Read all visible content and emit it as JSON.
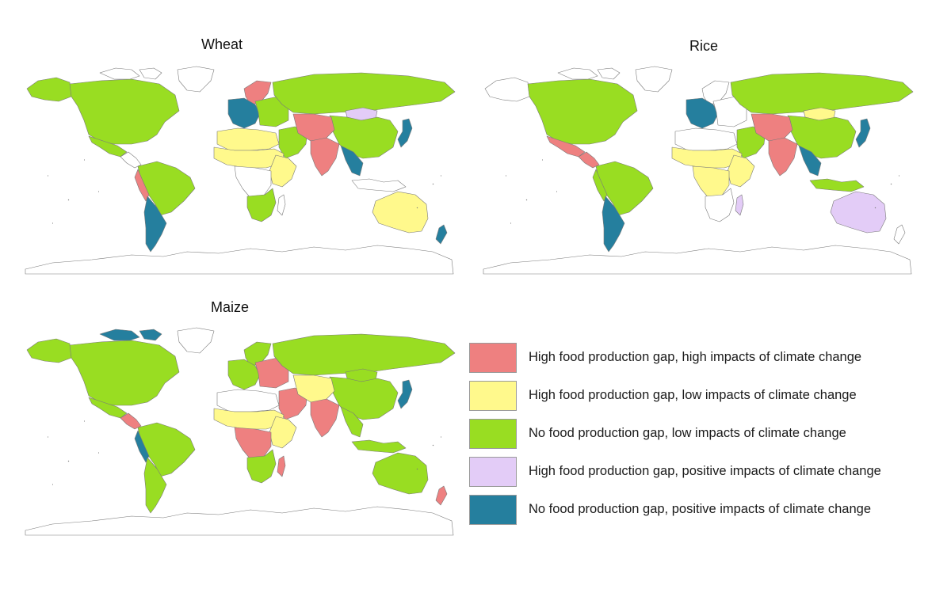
{
  "maps": [
    {
      "id": "wheat",
      "title": "Wheat"
    },
    {
      "id": "rice",
      "title": "Rice"
    },
    {
      "id": "maize",
      "title": "Maize"
    }
  ],
  "colors": {
    "high_gap_high_impact": "#EE8080",
    "high_gap_low_impact": "#FFF98C",
    "no_gap_low_impact": "#99DD22",
    "high_gap_positive_impact": "#E3CCF7",
    "no_gap_positive_impact": "#257F9E",
    "no_data": "#FFFFFF",
    "border": "#7a7a7a"
  },
  "legend": [
    {
      "category": "high_gap_high_impact",
      "label": "High food production gap, high impacts of climate change",
      "color": "#EE8080"
    },
    {
      "category": "high_gap_low_impact",
      "label": "High food production gap, low impacts of climate change",
      "color": "#FFF98C"
    },
    {
      "category": "no_gap_low_impact",
      "label": "No food production gap, low impacts of climate change",
      "color": "#99DD22"
    },
    {
      "category": "high_gap_positive_impact",
      "label": "High food production gap, positive impacts of climate change",
      "color": "#E3CCF7"
    },
    {
      "category": "no_gap_positive_impact",
      "label": "No food production gap, positive impacts of climate change",
      "color": "#257F9E"
    }
  ],
  "region_colors": {
    "wheat": {
      "north_america": "no_gap_low_impact",
      "canada_north": "no_data",
      "alaska": "no_gap_low_impact",
      "greenland": "no_data",
      "mexico": "no_gap_low_impact",
      "central_america": "no_data",
      "south_america_north": "no_gap_low_impact",
      "peru": "high_gap_high_impact",
      "southern_cone": "no_gap_positive_impact",
      "scandinavia": "high_gap_high_impact",
      "western_europe": "no_gap_positive_impact",
      "eastern_europe": "no_gap_low_impact",
      "russia": "no_gap_low_impact",
      "mongolia": "high_gap_positive_impact",
      "china": "no_gap_low_impact",
      "japan": "no_gap_positive_impact",
      "middle_east": "no_gap_low_impact",
      "iran_central_asia": "high_gap_high_impact",
      "india": "high_gap_high_impact",
      "southeast_asia": "no_gap_positive_impact",
      "indonesia": "no_data",
      "north_africa": "high_gap_low_impact",
      "sahel": "high_gap_low_impact",
      "east_africa": "high_gap_low_impact",
      "central_africa": "no_data",
      "southern_africa": "no_gap_low_impact",
      "madagascar": "no_data",
      "australia": "high_gap_low_impact",
      "new_zealand": "no_gap_positive_impact"
    },
    "rice": {
      "north_america": "no_gap_low_impact",
      "canada_north": "no_data",
      "alaska": "no_data",
      "greenland": "no_data",
      "mexico": "high_gap_high_impact",
      "central_america": "high_gap_high_impact",
      "south_america_north": "no_gap_low_impact",
      "peru": "no_gap_low_impact",
      "southern_cone": "no_gap_positive_impact",
      "scandinavia": "no_data",
      "western_europe": "no_gap_positive_impact",
      "eastern_europe": "no_data",
      "russia": "no_gap_low_impact",
      "mongolia": "high_gap_low_impact",
      "china": "no_gap_low_impact",
      "japan": "no_gap_positive_impact",
      "middle_east": "no_gap_low_impact",
      "iran_central_asia": "high_gap_high_impact",
      "india": "high_gap_high_impact",
      "southeast_asia": "no_gap_positive_impact",
      "indonesia": "no_gap_low_impact",
      "north_africa": "no_data",
      "sahel": "high_gap_low_impact",
      "east_africa": "high_gap_low_impact",
      "central_africa": "high_gap_low_impact",
      "southern_africa": "no_data",
      "madagascar": "high_gap_positive_impact",
      "australia": "high_gap_positive_impact",
      "new_zealand": "no_data"
    },
    "maize": {
      "north_america": "no_gap_low_impact",
      "canada_north": "no_gap_positive_impact",
      "alaska": "no_gap_low_impact",
      "greenland": "no_data",
      "mexico": "no_gap_low_impact",
      "central_america": "high_gap_high_impact",
      "south_america_north": "no_gap_low_impact",
      "peru": "no_gap_positive_impact",
      "southern_cone": "no_gap_low_impact",
      "scandinavia": "no_gap_low_impact",
      "western_europe": "no_gap_low_impact",
      "eastern_europe": "high_gap_high_impact",
      "russia": "no_gap_low_impact",
      "mongolia": "no_gap_low_impact",
      "china": "no_gap_low_impact",
      "japan": "no_gap_positive_impact",
      "middle_east": "high_gap_high_impact",
      "iran_central_asia": "high_gap_low_impact",
      "india": "high_gap_high_impact",
      "southeast_asia": "no_gap_low_impact",
      "indonesia": "no_gap_low_impact",
      "north_africa": "no_data",
      "sahel": "high_gap_low_impact",
      "east_africa": "high_gap_low_impact",
      "central_africa": "high_gap_high_impact",
      "southern_africa": "no_gap_low_impact",
      "madagascar": "high_gap_high_impact",
      "australia": "no_gap_low_impact",
      "new_zealand": "high_gap_high_impact"
    }
  }
}
